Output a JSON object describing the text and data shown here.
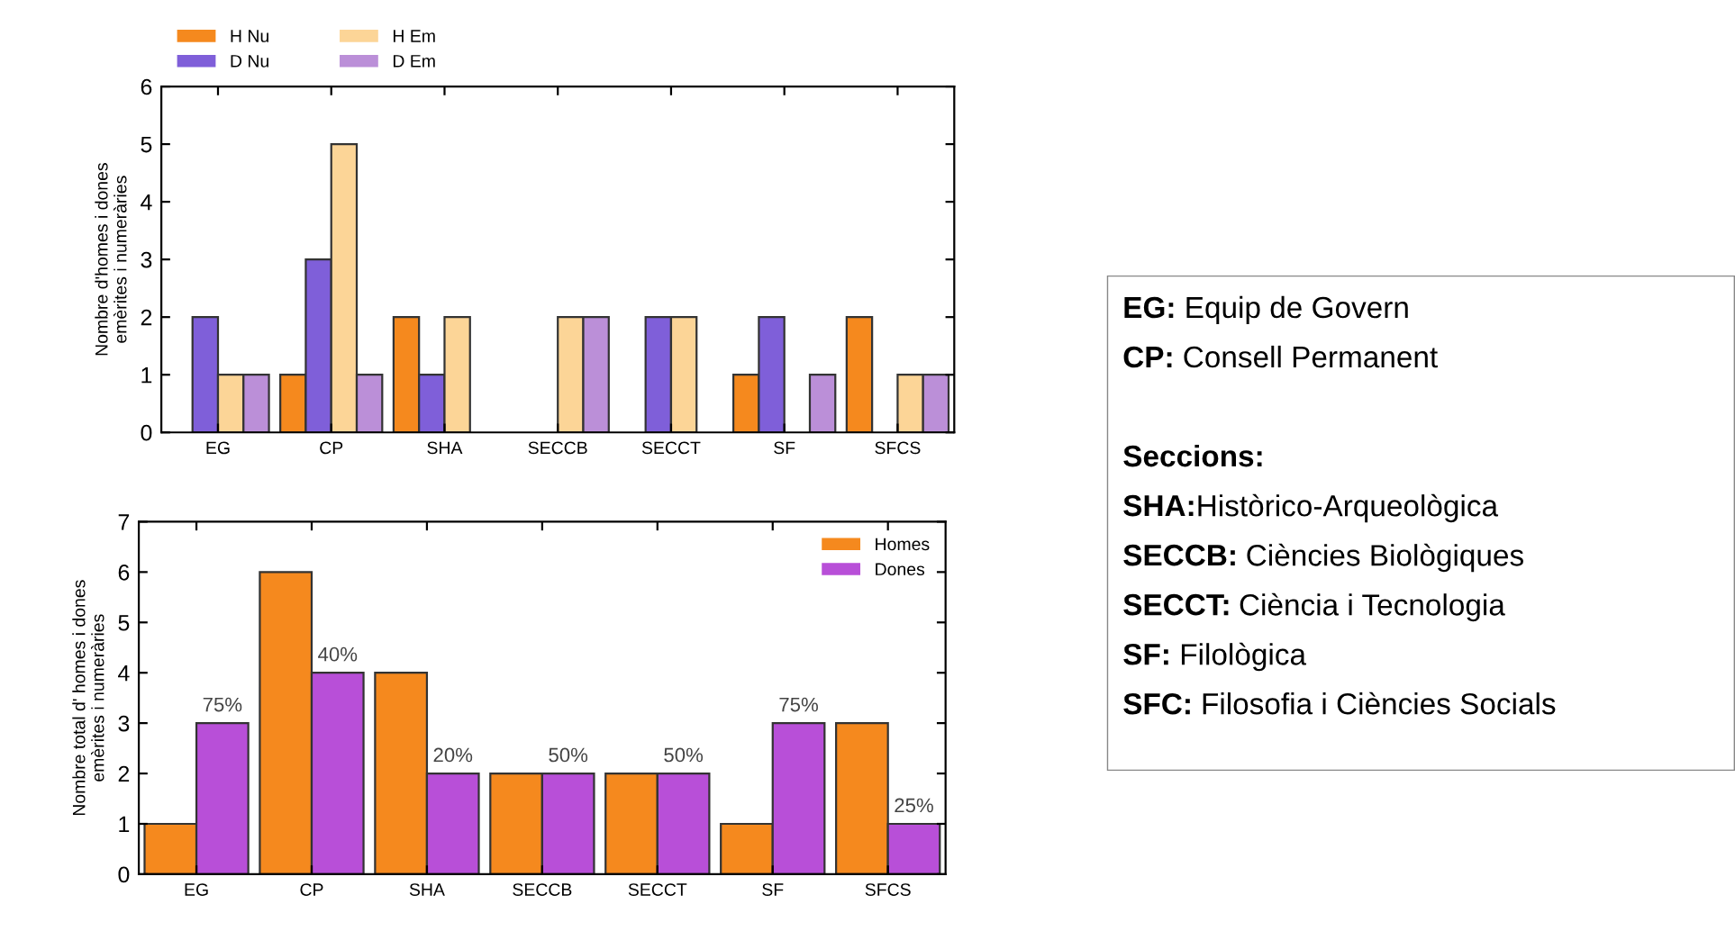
{
  "chart_data": [
    {
      "type": "bar",
      "categories": [
        "EG",
        "CP",
        "SHA",
        "SECCB",
        "SECCT",
        "SF",
        "SFCS"
      ],
      "ylabel": "Nombre d'homes i dones\nemèrites i numeràries",
      "ylim": [
        0,
        6
      ],
      "yticks": [
        0,
        1,
        2,
        3,
        4,
        5,
        6
      ],
      "grid": false,
      "legend": "top",
      "series": [
        {
          "name": "H Nu",
          "color": "#f5891e",
          "values": [
            0,
            1,
            2,
            0,
            0,
            1,
            2
          ]
        },
        {
          "name": "D Nu",
          "color": "#7f5fd9",
          "values": [
            2,
            3,
            1,
            0,
            2,
            2,
            0
          ]
        },
        {
          "name": "H Em",
          "color": "#fcd597",
          "values": [
            1,
            5,
            2,
            2,
            2,
            0,
            1
          ]
        },
        {
          "name": "D Em",
          "color": "#bb8fd8",
          "values": [
            1,
            1,
            0,
            2,
            0,
            1,
            1
          ]
        }
      ]
    },
    {
      "type": "bar",
      "categories": [
        "EG",
        "CP",
        "SHA",
        "SECCB",
        "SECCT",
        "SF",
        "SFCS"
      ],
      "ylabel": "Nombre total d' homes i dones\nemèrites i numeràries",
      "ylim": [
        0,
        7
      ],
      "yticks": [
        0,
        1,
        2,
        3,
        4,
        5,
        6,
        7
      ],
      "grid": false,
      "legend": "top right",
      "annotations": [
        {
          "text": "75%",
          "x": "EG",
          "y": 3
        },
        {
          "text": "40%",
          "x": "CP",
          "y": 4
        },
        {
          "text": "20%",
          "x": "SHA",
          "y": 2
        },
        {
          "text": "50%",
          "x": "SECCB",
          "y": 2
        },
        {
          "text": "50%",
          "x": "SECCT",
          "y": 2
        },
        {
          "text": "75%",
          "x": "SF",
          "y": 3
        },
        {
          "text": "25%",
          "x": "SFCS",
          "y": 1
        }
      ],
      "series": [
        {
          "name": "Homes",
          "color": "#f5891e",
          "values": [
            1,
            6,
            4,
            2,
            2,
            1,
            3
          ]
        },
        {
          "name": "Dones",
          "color": "#b84fd8",
          "values": [
            3,
            4,
            2,
            2,
            2,
            3,
            1
          ]
        }
      ]
    },
    {
      "type": "other",
      "annotations": [
        "EG: Equip de Govern",
        "CP: Consell Permanent",
        "Seccions:",
        "SHA:Històrico-Arqueològica",
        "SECCB: Ciències Biològiques",
        "SECCT: Ciència i Tecnologia",
        "SF: Filològica",
        "SFC: Filosofia i Ciències Socials"
      ]
    }
  ]
}
